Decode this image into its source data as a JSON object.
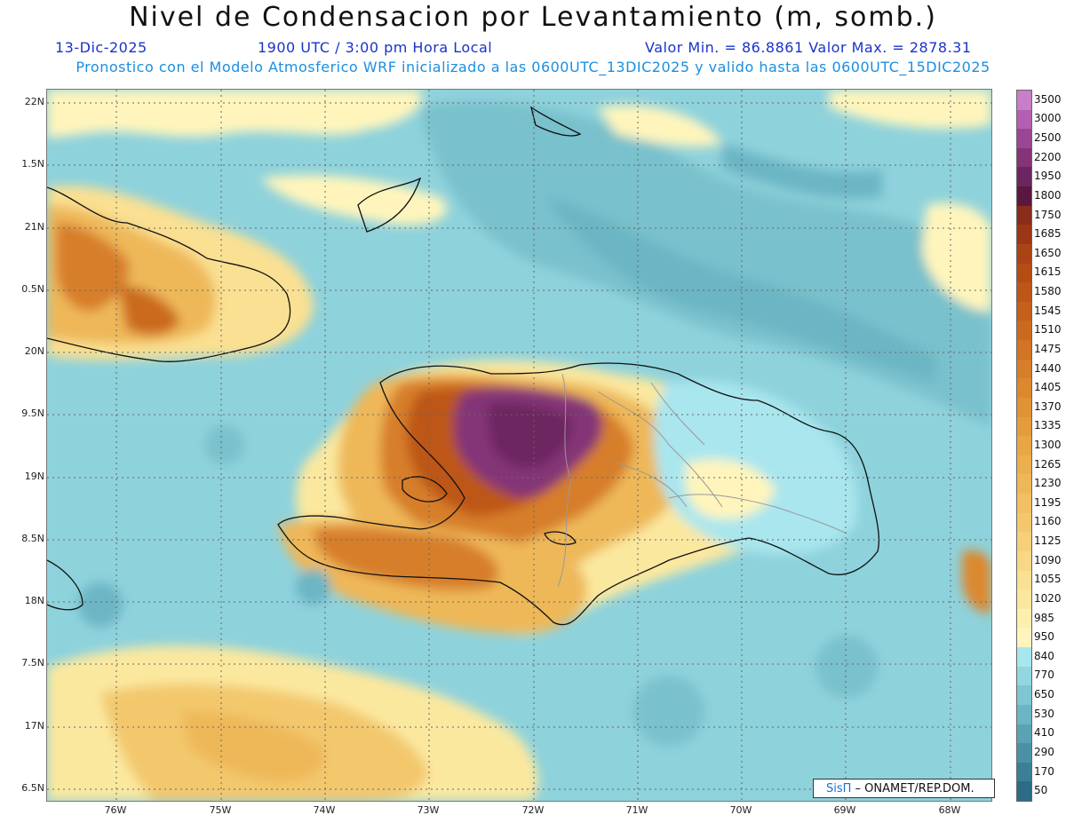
{
  "header": {
    "title": "Nivel de Condensacion por Levantamiento (m, somb.)",
    "date": "13-Dic-2025",
    "time": "1900 UTC / 3:00 pm Hora Local",
    "min_max": "Valor Min. = 86.8861  Valor Max. = 2878.31",
    "forecast_note": "Pronostico con el Modelo Atmosferico WRF inicializado a las 0600UTC_13DIC2025 y valido hasta las  0600UTC_15DIC2025"
  },
  "axes": {
    "lat_labels": [
      "22N",
      "1.5N",
      "21N",
      "0.5N",
      "20N",
      "9.5N",
      "19N",
      "8.5N",
      "18N",
      "7.5N",
      "17N",
      "6.5N"
    ],
    "lon_labels": [
      "76W",
      "75W",
      "74W",
      "73W",
      "72W",
      "71W",
      "70W",
      "69W",
      "68W"
    ]
  },
  "colorbar": {
    "labels": [
      "3500",
      "3000",
      "2500",
      "2200",
      "1950",
      "1800",
      "1750",
      "1685",
      "1650",
      "1615",
      "1580",
      "1545",
      "1510",
      "1475",
      "1440",
      "1405",
      "1370",
      "1335",
      "1300",
      "1265",
      "1230",
      "1195",
      "1160",
      "1125",
      "1090",
      "1055",
      "1020",
      "985",
      "950",
      "840",
      "770",
      "650",
      "530",
      "410",
      "290",
      "170",
      "50"
    ],
    "colors": [
      "#c87ec8",
      "#b35fb3",
      "#9a4695",
      "#843477",
      "#6d2560",
      "#5a1840",
      "#8a2c1a",
      "#9c3716",
      "#ac4314",
      "#b54c14",
      "#bd5617",
      "#c4601b",
      "#cb6a1f",
      "#d27424",
      "#d77e29",
      "#dc882f",
      "#e09236",
      "#e49c3d",
      "#e8a645",
      "#ebaf4e",
      "#eeb858",
      "#f1c062",
      "#f3c86d",
      "#f6d079",
      "#f8d885",
      "#fae092",
      "#fbe89f",
      "#fdefad",
      "#fff5bc",
      "#a9e6ee",
      "#92d6e0",
      "#7ec6d2",
      "#6cb5c4",
      "#5aa3b5",
      "#4a91a6",
      "#3a7f96",
      "#2c6c86"
    ]
  },
  "credit": {
    "logo": "SisΠ",
    "text": " – ONAMET/REP.DOM."
  }
}
